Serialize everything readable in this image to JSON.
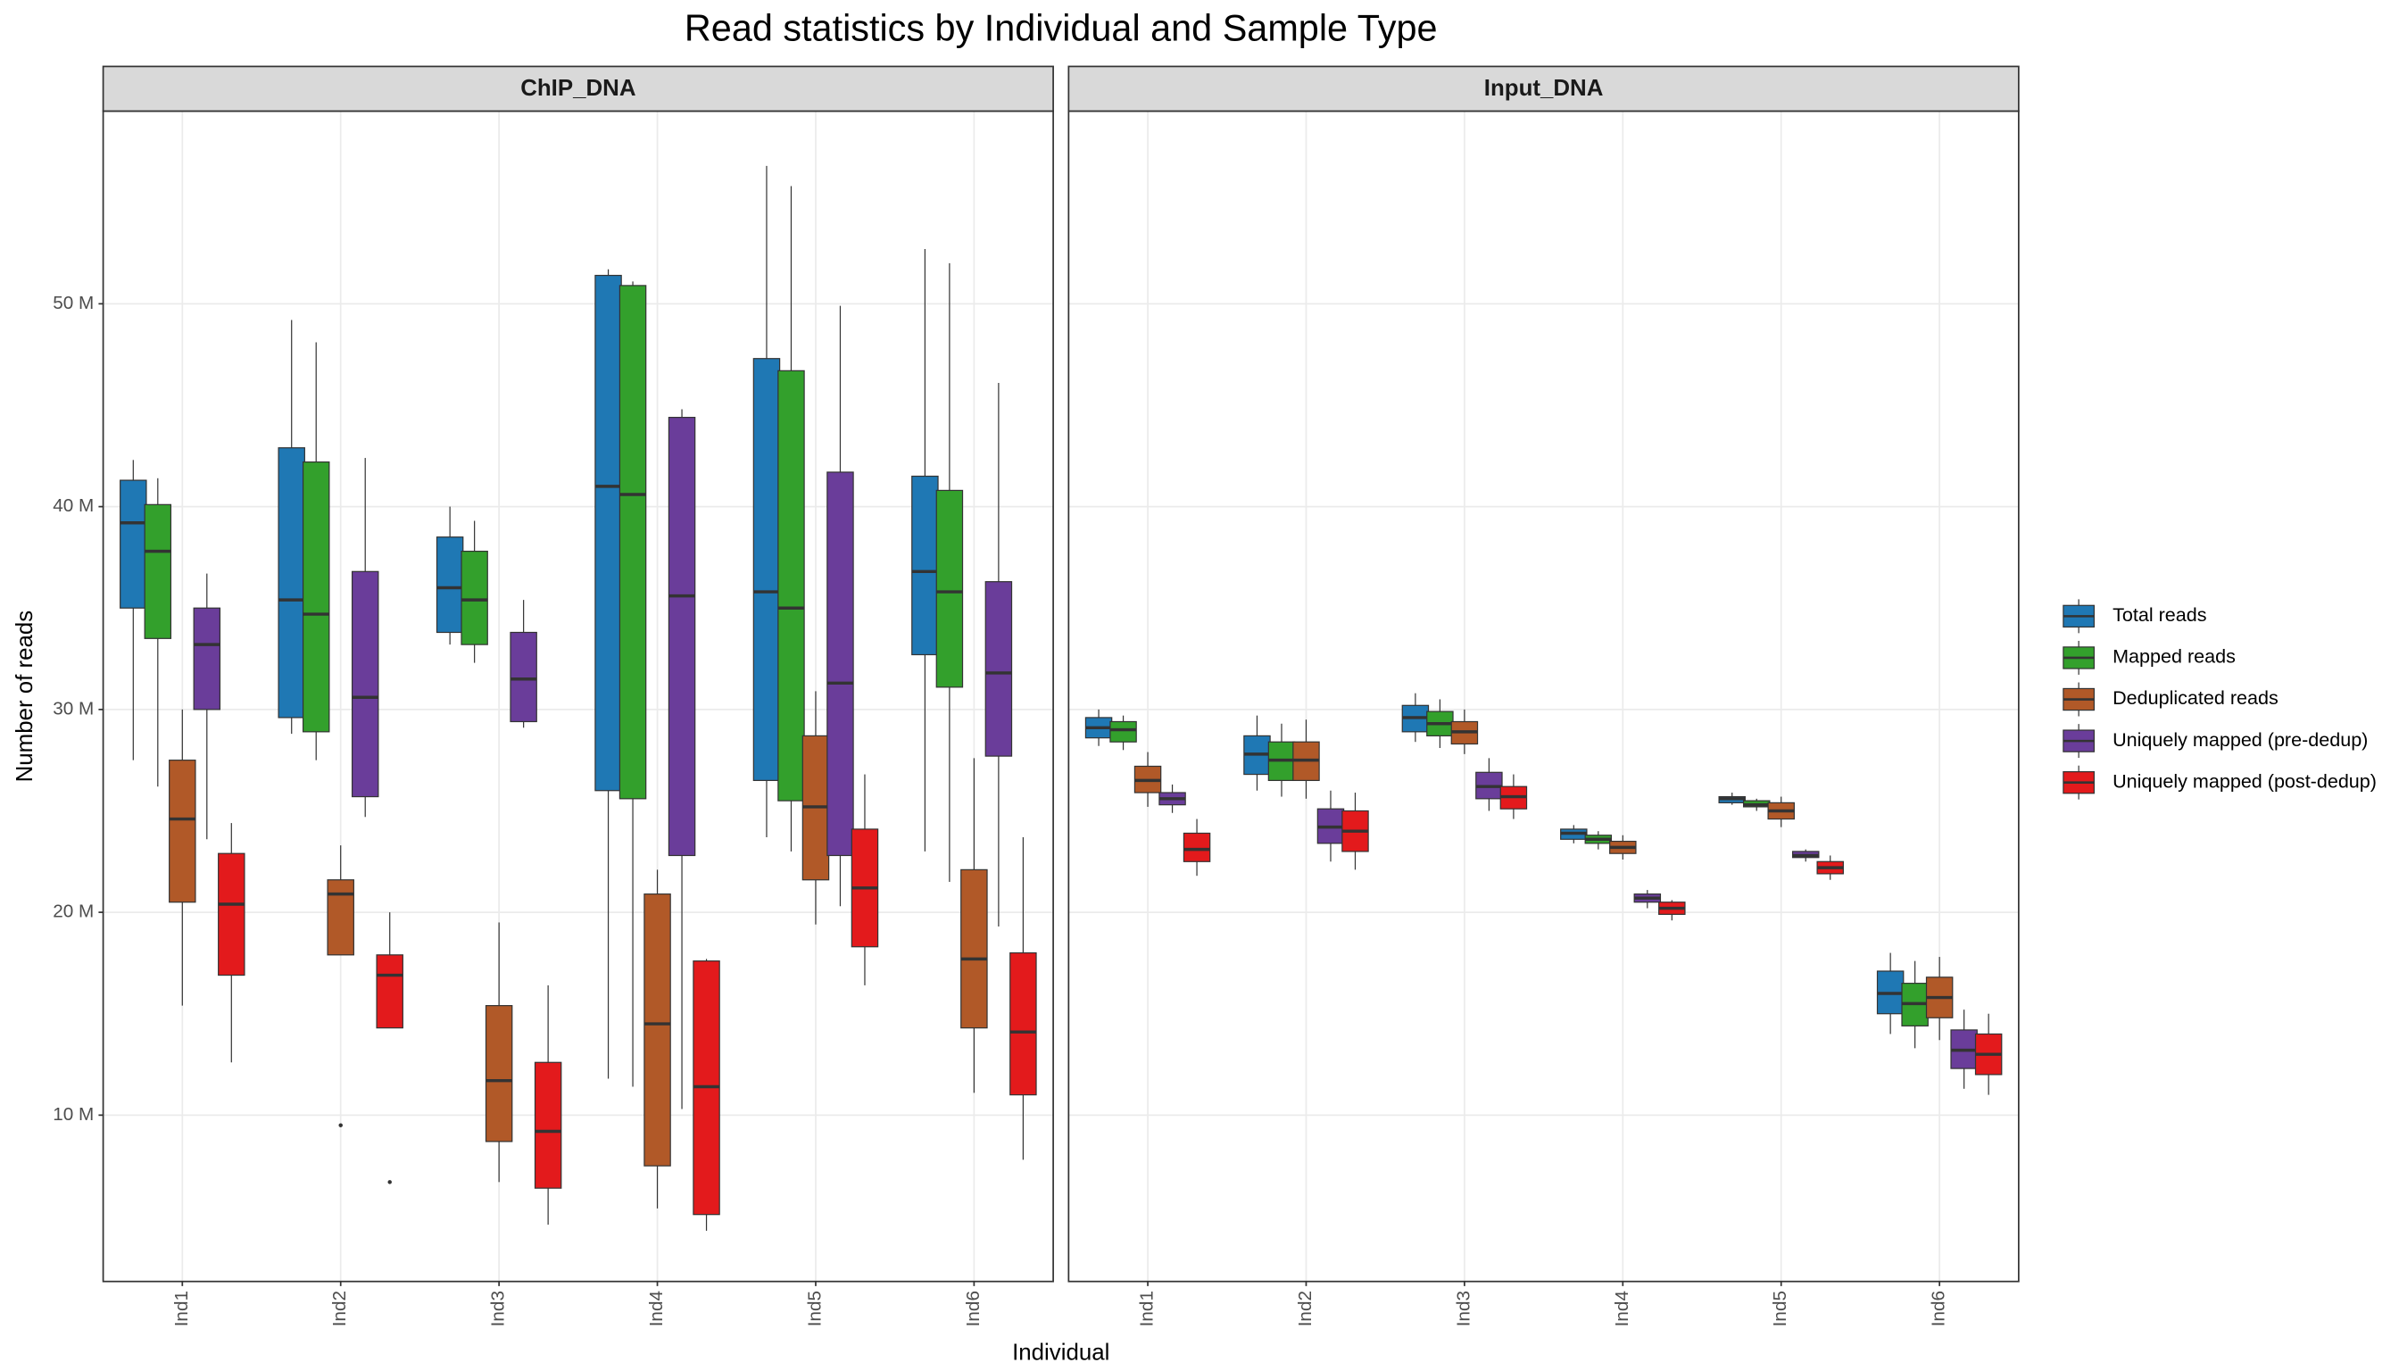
{
  "chart_data": {
    "type": "box",
    "title": "Read statistics by Individual and Sample Type",
    "x_label": "Individual",
    "y_label": "Number of reads",
    "ylim": [
      1800000,
      59500000
    ],
    "yticks": [
      {
        "value": 10000000,
        "label": "10 M"
      },
      {
        "value": 20000000,
        "label": "20 M"
      },
      {
        "value": 30000000,
        "label": "30 M"
      },
      {
        "value": 40000000,
        "label": "40 M"
      },
      {
        "value": 50000000,
        "label": "50 M"
      }
    ],
    "grid": true,
    "legend_position": "right",
    "series": [
      {
        "name": "Total reads",
        "color": "#1f78b4"
      },
      {
        "name": "Mapped reads",
        "color": "#33a02c"
      },
      {
        "name": "Deduplicated reads",
        "color": "#b15928"
      },
      {
        "name": "Uniquely mapped (pre-dedup)",
        "color": "#6a3d9a"
      },
      {
        "name": "Uniquely mapped (post-dedup)",
        "color": "#e31a1c"
      }
    ],
    "facets": [
      {
        "title": "ChIP_DNA",
        "categories": [
          "Ind1",
          "Ind2",
          "Ind3",
          "Ind4",
          "Ind5",
          "Ind6"
        ],
        "boxes": [
          [
            {
              "whislo": 27500000,
              "q1": 35000000,
              "med": 39200000,
              "q3": 41300000,
              "whishi": 42300000
            },
            {
              "whislo": 28800000,
              "q1": 29600000,
              "med": 35400000,
              "q3": 42900000,
              "whishi": 49200000
            },
            {
              "whislo": 33200000,
              "q1": 33800000,
              "med": 36000000,
              "q3": 38500000,
              "whishi": 40000000
            },
            {
              "whislo": 11800000,
              "q1": 26000000,
              "med": 41000000,
              "q3": 51400000,
              "whishi": 51700000
            },
            {
              "whislo": 23700000,
              "q1": 26500000,
              "med": 35800000,
              "q3": 47300000,
              "whishi": 56800000
            },
            {
              "whislo": 23000000,
              "q1": 32700000,
              "med": 36800000,
              "q3": 41500000,
              "whishi": 52700000
            }
          ],
          [
            {
              "whislo": 26200000,
              "q1": 33500000,
              "med": 37800000,
              "q3": 40100000,
              "whishi": 41400000
            },
            {
              "whislo": 27500000,
              "q1": 28900000,
              "med": 34700000,
              "q3": 42200000,
              "whishi": 48100000
            },
            {
              "whislo": 32300000,
              "q1": 33200000,
              "med": 35400000,
              "q3": 37800000,
              "whishi": 39300000
            },
            {
              "whislo": 11400000,
              "q1": 25600000,
              "med": 40600000,
              "q3": 50900000,
              "whishi": 51100000
            },
            {
              "whislo": 23000000,
              "q1": 25500000,
              "med": 35000000,
              "q3": 46700000,
              "whishi": 55800000
            },
            {
              "whislo": 21500000,
              "q1": 31100000,
              "med": 35800000,
              "q3": 40800000,
              "whishi": 52000000
            }
          ],
          [
            {
              "whislo": 15400000,
              "q1": 20500000,
              "med": 24600000,
              "q3": 27500000,
              "whishi": 30000000
            },
            {
              "whislo": 17900000,
              "q1": 17900000,
              "med": 20900000,
              "q3": 21600000,
              "whishi": 23300000,
              "fliers": [
                9500000
              ]
            },
            {
              "whislo": 6700000,
              "q1": 8700000,
              "med": 11700000,
              "q3": 15400000,
              "whishi": 19500000
            },
            {
              "whislo": 5400000,
              "q1": 7500000,
              "med": 14500000,
              "q3": 20900000,
              "whishi": 22100000
            },
            {
              "whislo": 19400000,
              "q1": 21600000,
              "med": 25200000,
              "q3": 28700000,
              "whishi": 30900000
            },
            {
              "whislo": 11100000,
              "q1": 14300000,
              "med": 17700000,
              "q3": 22100000,
              "whishi": 27600000
            }
          ],
          [
            {
              "whislo": 23600000,
              "q1": 30000000,
              "med": 33200000,
              "q3": 35000000,
              "whishi": 36700000
            },
            {
              "whislo": 24700000,
              "q1": 25700000,
              "med": 30600000,
              "q3": 36800000,
              "whishi": 42400000
            },
            {
              "whislo": 29100000,
              "q1": 29400000,
              "med": 31500000,
              "q3": 33800000,
              "whishi": 35400000
            },
            {
              "whislo": 10300000,
              "q1": 22800000,
              "med": 35600000,
              "q3": 44400000,
              "whishi": 44800000
            },
            {
              "whislo": 20300000,
              "q1": 22800000,
              "med": 31300000,
              "q3": 41700000,
              "whishi": 49900000
            },
            {
              "whislo": 19300000,
              "q1": 27700000,
              "med": 31800000,
              "q3": 36300000,
              "whishi": 46100000
            }
          ],
          [
            {
              "whislo": 12600000,
              "q1": 16900000,
              "med": 20400000,
              "q3": 22900000,
              "whishi": 24400000
            },
            {
              "whislo": 14300000,
              "q1": 14300000,
              "med": 16900000,
              "q3": 17900000,
              "whishi": 20000000,
              "fliers": [
                6700000
              ]
            },
            {
              "whislo": 4600000,
              "q1": 6400000,
              "med": 9200000,
              "q3": 12600000,
              "whishi": 16400000
            },
            {
              "whislo": 4300000,
              "q1": 5100000,
              "med": 11400000,
              "q3": 17600000,
              "whishi": 17700000
            },
            {
              "whislo": 16400000,
              "q1": 18300000,
              "med": 21200000,
              "q3": 24100000,
              "whishi": 26800000
            },
            {
              "whislo": 7800000,
              "q1": 11000000,
              "med": 14100000,
              "q3": 18000000,
              "whishi": 23700000
            }
          ]
        ]
      },
      {
        "title": "Input_DNA",
        "categories": [
          "Ind1",
          "Ind2",
          "Ind3",
          "Ind4",
          "Ind5",
          "Ind6"
        ],
        "boxes": [
          [
            {
              "whislo": 28200000,
              "q1": 28600000,
              "med": 29100000,
              "q3": 29600000,
              "whishi": 30000000
            },
            {
              "whislo": 26000000,
              "q1": 26800000,
              "med": 27800000,
              "q3": 28700000,
              "whishi": 29700000
            },
            {
              "whislo": 28400000,
              "q1": 28900000,
              "med": 29600000,
              "q3": 30200000,
              "whishi": 30800000
            },
            {
              "whislo": 23400000,
              "q1": 23600000,
              "med": 23900000,
              "q3": 24100000,
              "whishi": 24300000
            },
            {
              "whislo": 25300000,
              "q1": 25400000,
              "med": 25600000,
              "q3": 25700000,
              "whishi": 25900000
            },
            {
              "whislo": 14000000,
              "q1": 15000000,
              "med": 16000000,
              "q3": 17100000,
              "whishi": 18000000
            }
          ],
          [
            {
              "whislo": 28000000,
              "q1": 28400000,
              "med": 29000000,
              "q3": 29400000,
              "whishi": 29700000
            },
            {
              "whislo": 25700000,
              "q1": 26500000,
              "med": 27500000,
              "q3": 28400000,
              "whishi": 29300000
            },
            {
              "whislo": 28100000,
              "q1": 28700000,
              "med": 29300000,
              "q3": 29900000,
              "whishi": 30500000
            },
            {
              "whislo": 23100000,
              "q1": 23400000,
              "med": 23600000,
              "q3": 23800000,
              "whishi": 24000000
            },
            {
              "whislo": 25000000,
              "q1": 25200000,
              "med": 25300000,
              "q3": 25500000,
              "whishi": 25600000
            },
            {
              "whislo": 13300000,
              "q1": 14400000,
              "med": 15500000,
              "q3": 16500000,
              "whishi": 17600000
            }
          ],
          [
            {
              "whislo": 25200000,
              "q1": 25900000,
              "med": 26500000,
              "q3": 27200000,
              "whishi": 27900000
            },
            {
              "whislo": 25600000,
              "q1": 26500000,
              "med": 27500000,
              "q3": 28400000,
              "whishi": 29500000
            },
            {
              "whislo": 27800000,
              "q1": 28300000,
              "med": 28900000,
              "q3": 29400000,
              "whishi": 30000000
            },
            {
              "whislo": 22600000,
              "q1": 22900000,
              "med": 23200000,
              "q3": 23500000,
              "whishi": 23800000
            },
            {
              "whislo": 24200000,
              "q1": 24600000,
              "med": 25000000,
              "q3": 25400000,
              "whishi": 25700000
            },
            {
              "whislo": 13700000,
              "q1": 14800000,
              "med": 15800000,
              "q3": 16800000,
              "whishi": 17800000
            }
          ],
          [
            {
              "whislo": 24900000,
              "q1": 25300000,
              "med": 25600000,
              "q3": 25900000,
              "whishi": 26300000
            },
            {
              "whislo": 22500000,
              "q1": 23400000,
              "med": 24200000,
              "q3": 25100000,
              "whishi": 26000000
            },
            {
              "whislo": 25000000,
              "q1": 25600000,
              "med": 26200000,
              "q3": 26900000,
              "whishi": 27600000
            },
            {
              "whislo": 20200000,
              "q1": 20500000,
              "med": 20700000,
              "q3": 20900000,
              "whishi": 21100000
            },
            {
              "whislo": 22500000,
              "q1": 22700000,
              "med": 22800000,
              "q3": 23000000,
              "whishi": 23100000
            },
            {
              "whislo": 11300000,
              "q1": 12300000,
              "med": 13200000,
              "q3": 14200000,
              "whishi": 15200000
            }
          ],
          [
            {
              "whislo": 21800000,
              "q1": 22500000,
              "med": 23100000,
              "q3": 23900000,
              "whishi": 24600000
            },
            {
              "whislo": 22100000,
              "q1": 23000000,
              "med": 24000000,
              "q3": 25000000,
              "whishi": 25900000
            },
            {
              "whislo": 24600000,
              "q1": 25100000,
              "med": 25700000,
              "q3": 26200000,
              "whishi": 26800000
            },
            {
              "whislo": 19600000,
              "q1": 19900000,
              "med": 20200000,
              "q3": 20500000,
              "whishi": 20600000
            },
            {
              "whislo": 21600000,
              "q1": 21900000,
              "med": 22200000,
              "q3": 22500000,
              "whishi": 22800000
            },
            {
              "whislo": 11000000,
              "q1": 12000000,
              "med": 13000000,
              "q3": 14000000,
              "whishi": 15000000
            }
          ]
        ]
      }
    ]
  }
}
